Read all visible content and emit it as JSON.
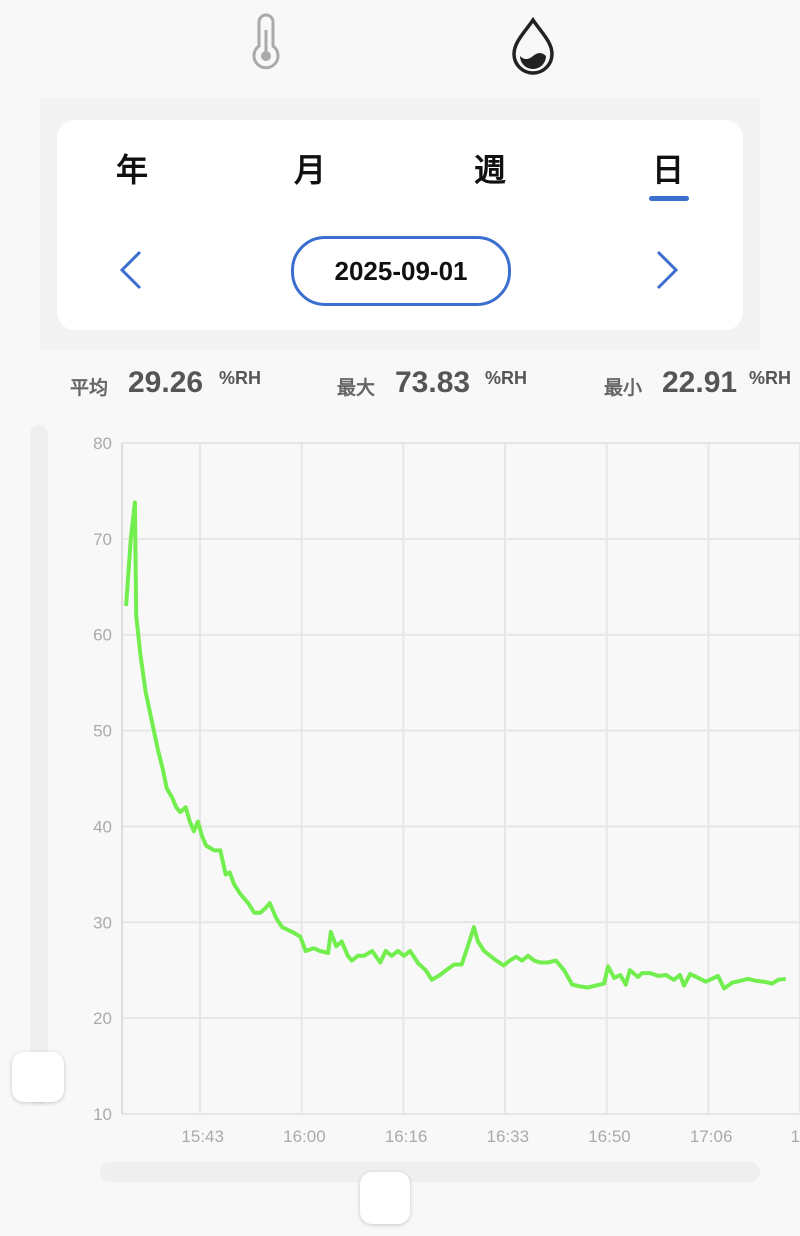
{
  "tabs": [
    "年",
    "月",
    "週",
    "日"
  ],
  "date": "2025-09-01",
  "stats": [
    {
      "label": "平均",
      "value": "29.26",
      "unit": "%RH"
    },
    {
      "label": "最大",
      "value": "73.83",
      "unit": "%RH"
    },
    {
      "label": "最小",
      "value": "22.91",
      "unit": "%RH"
    }
  ],
  "chart_data": {
    "type": "line",
    "color": "#72ee4f",
    "grid": true,
    "x": [
      0.6,
      1.3,
      1.9,
      2.1,
      2.7,
      3.5,
      4.4,
      5.3,
      6.0,
      6.6,
      7.4,
      8.0,
      8.6,
      9.4,
      10.0,
      10.6,
      11.2,
      11.8,
      12.4,
      13.6,
      14.5,
      15.3,
      15.9,
      16.5,
      17.4,
      18.6,
      19.5,
      20.4,
      21.2,
      21.8,
      22.7,
      23.6,
      25.1,
      26.3,
      27.1,
      28.3,
      29.2,
      30.4,
      30.8,
      31.6,
      32.4,
      33.3,
      33.9,
      34.8,
      35.7,
      36.9,
      38.1,
      38.9,
      39.8,
      40.7,
      41.6,
      42.5,
      43.7,
      44.8,
      45.7,
      46.9,
      47.8,
      49.0,
      50.1,
      51.0,
      51.9,
      52.5,
      53.4,
      54.3,
      55.2,
      56.3,
      57.2,
      58.1,
      59.0,
      59.9,
      60.8,
      61.7,
      62.8,
      64.0,
      65.2,
      66.4,
      67.6,
      68.7,
      69.9,
      71.1,
      71.7,
      72.6,
      73.5,
      74.3,
      74.9,
      76.1,
      76.7,
      77.9,
      79.1,
      80.2,
      81.4,
      82.3,
      82.9,
      83.8,
      85.0,
      86.1,
      87.0,
      87.9,
      88.8,
      90.0,
      91.2,
      92.3,
      93.5,
      94.7,
      95.9,
      96.8,
      97.9
    ],
    "values": [
      63,
      70,
      73.8,
      62,
      58,
      54,
      51,
      48,
      46,
      44,
      43,
      42,
      41.5,
      42,
      40.5,
      39.5,
      40.5,
      39,
      38,
      37.5,
      37.5,
      35,
      35.2,
      34,
      33,
      32,
      31,
      31,
      31.5,
      32,
      30.5,
      29.5,
      29,
      28.5,
      27,
      27.3,
      27,
      26.8,
      29,
      27.5,
      28,
      26.5,
      26,
      26.5,
      26.5,
      27,
      25.8,
      27,
      26.5,
      27,
      26.5,
      27,
      25.7,
      25,
      24,
      24.5,
      25,
      25.6,
      25.6,
      27.5,
      29.5,
      28,
      27,
      26.5,
      26,
      25.5,
      26,
      26.4,
      26,
      26.5,
      26,
      25.8,
      25.8,
      26,
      25,
      23.5,
      23.3,
      23.2,
      23.4,
      23.6,
      25.4,
      24.2,
      24.5,
      23.5,
      25,
      24.3,
      24.7,
      24.7,
      24.4,
      24.5,
      24,
      24.5,
      23.4,
      24.6,
      24.2,
      23.8,
      24.1,
      24.4,
      23.1,
      23.7,
      23.9,
      24.1,
      23.9,
      23.8,
      23.6,
      24,
      24.1
    ],
    "xlim": [
      0,
      100
    ],
    "ylim": [
      10,
      80
    ],
    "xticks": [
      {
        "value": 11.5,
        "label": "15:43"
      },
      {
        "value": 26.5,
        "label": "16:00"
      },
      {
        "value": 41.5,
        "label": "16:16"
      },
      {
        "value": 56.5,
        "label": "16:33"
      },
      {
        "value": 71.5,
        "label": "16:50"
      },
      {
        "value": 86.5,
        "label": "17:06"
      },
      {
        "value": 100,
        "label": "1"
      }
    ],
    "yticks": [
      10,
      20,
      30,
      40,
      50,
      60,
      70,
      80
    ]
  }
}
